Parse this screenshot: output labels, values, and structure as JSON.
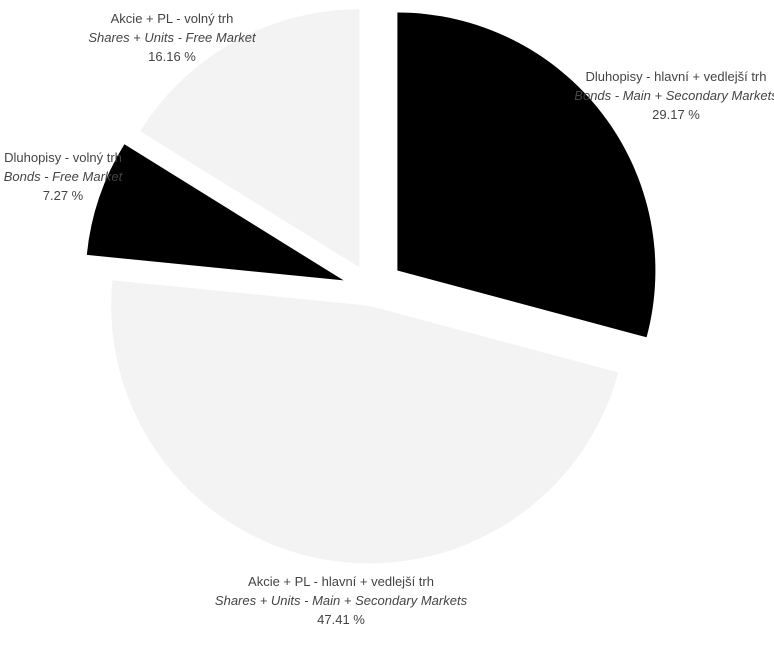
{
  "chart_data": {
    "type": "pie",
    "title": "",
    "slices": [
      {
        "label_cz": "Dluhopisy - hlavní + vedlejší trh",
        "label_en": "Bonds - Main + Secondary Markets",
        "value": 29.17,
        "value_label": "29.17 %",
        "color": "#000000"
      },
      {
        "label_cz": "Akcie + PL - hlavní + vedlejší trh",
        "label_en": "Shares + Units - Main + Secondary Markets",
        "value": 47.41,
        "value_label": "47.41 %",
        "color": "#f3f3f3"
      },
      {
        "label_cz": "Dluhopisy - volný trh",
        "label_en": "Bonds - Free Market",
        "value": 7.27,
        "value_label": "7.27 %",
        "color": "#000000"
      },
      {
        "label_cz": "Akcie + PL - volný trh",
        "label_en": "Shares + Units - Free Market",
        "value": 16.16,
        "value_label": "16.16 %",
        "color": "#f3f3f3"
      }
    ],
    "start_angle_deg": 0,
    "direction": "clockwise",
    "exploded": true,
    "legend": "none"
  }
}
